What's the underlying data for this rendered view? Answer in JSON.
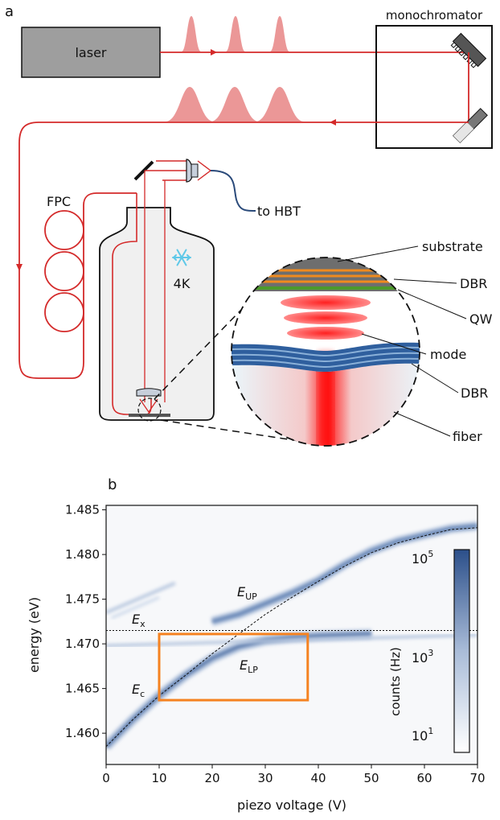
{
  "panel_a": {
    "panel_label": "a",
    "laser_label": "laser",
    "monochromator_label": "monochromator",
    "fpc_label": "FPC",
    "hbt_label": "to HBT",
    "temperature_label": "4K",
    "layers": {
      "substrate": "substrate",
      "dbr_top": "DBR",
      "qw": "QW",
      "mode": "mode",
      "dbr_bottom": "DBR",
      "fiber": "fiber"
    },
    "colors": {
      "beam": "#d42a2a",
      "pulse": "#e88585",
      "fiber_hbt": "#2a4a7a",
      "dbr_blue": "#2f5f9e",
      "dbr_orange": "#f08a1e",
      "qw_green": "#4c9a2a",
      "substrate_gray": "#6e6e6e",
      "snowflake": "#5ec8e8"
    }
  },
  "panel_b": {
    "panel_label": "b",
    "label_ux": "E",
    "label_ux_sub": "UP",
    "label_lp": "E",
    "label_lp_sub": "LP",
    "label_ex": "E",
    "label_ex_sub": "x",
    "label_ec": "E",
    "label_ec_sub": "c",
    "colorbar_label": "counts (Hz)",
    "colorbar_ticks": [
      {
        "base": "10",
        "exp": "5"
      },
      {
        "base": "10",
        "exp": "3"
      },
      {
        "base": "10",
        "exp": "1"
      }
    ]
  },
  "chart_data": {
    "type": "heatmap",
    "xlabel": "piezo voltage (V)",
    "ylabel": "energy (eV)",
    "xlim": [
      0,
      70
    ],
    "ylim": [
      1.4565,
      1.4855
    ],
    "xticks": [
      "0",
      "10",
      "20",
      "30",
      "40",
      "50",
      "60",
      "70"
    ],
    "yticks": [
      "1.460",
      "1.465",
      "1.470",
      "1.475",
      "1.480",
      "1.485"
    ],
    "exciton_energy": 1.4715,
    "cavity_mode": {
      "x": [
        0,
        5,
        10,
        15,
        20,
        25,
        30,
        35,
        40,
        45,
        50,
        55,
        60,
        65,
        70
      ],
      "y": [
        1.4585,
        1.4615,
        1.4642,
        1.4665,
        1.4689,
        1.4711,
        1.4733,
        1.4752,
        1.477,
        1.4787,
        1.4802,
        1.4813,
        1.4821,
        1.4828,
        1.483
      ]
    },
    "upper_polariton": {
      "x": [
        20,
        25,
        30,
        35,
        40,
        45,
        50,
        55,
        60,
        65,
        70
      ],
      "y": [
        1.4725,
        1.4733,
        1.4745,
        1.4757,
        1.4771,
        1.4789,
        1.4804,
        1.4815,
        1.4822,
        1.4829,
        1.4832
      ]
    },
    "lower_polariton": {
      "x": [
        0,
        5,
        10,
        15,
        20,
        25,
        30,
        35,
        40,
        45,
        50
      ],
      "y": [
        1.4585,
        1.4615,
        1.4642,
        1.4665,
        1.4684,
        1.4697,
        1.4704,
        1.4707,
        1.4709,
        1.471,
        1.4711
      ]
    },
    "highlight_box": {
      "x": [
        10,
        38
      ],
      "y": [
        1.4637,
        1.4711
      ]
    },
    "colorbar": {
      "scale": "log",
      "range": [
        1,
        100000
      ],
      "low_color": "#ffffff",
      "high_color": "#2b4f8a"
    }
  }
}
